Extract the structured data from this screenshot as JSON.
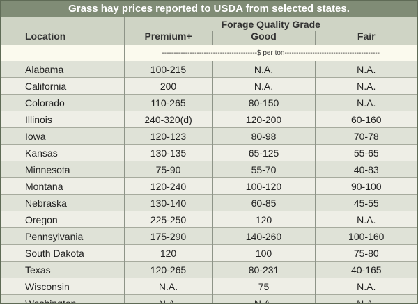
{
  "title": "Grass hay prices reported to USDA from selected states.",
  "header": {
    "location": "Location",
    "group": "Forage Quality Grade",
    "grades": [
      "Premium+",
      "Good",
      "Fair"
    ],
    "unit": "-----------------------------------------$ per ton-----------------------------------------"
  },
  "rows": [
    {
      "state": "Alabama",
      "premium": "100-215",
      "good": "N.A.",
      "fair": "N.A."
    },
    {
      "state": "California",
      "premium": "200",
      "good": "N.A.",
      "fair": "N.A."
    },
    {
      "state": "Colorado",
      "premium": "110-265",
      "good": "80-150",
      "fair": "N.A."
    },
    {
      "state": "Illinois",
      "premium": "240-320(d)",
      "good": "120-200",
      "fair": "60-160"
    },
    {
      "state": "Iowa",
      "premium": "120-123",
      "good": "80-98",
      "fair": "70-78"
    },
    {
      "state": "Kansas",
      "premium": "130-135",
      "good": "65-125",
      "fair": "55-65"
    },
    {
      "state": "Minnesota",
      "premium": "75-90",
      "good": "55-70",
      "fair": "40-83"
    },
    {
      "state": "Montana",
      "premium": "120-240",
      "good": "100-120",
      "fair": "90-100"
    },
    {
      "state": "Nebraska",
      "premium": "130-140",
      "good": "60-85",
      "fair": "45-55"
    },
    {
      "state": "Oregon",
      "premium": "225-250",
      "good": "120",
      "fair": "N.A."
    },
    {
      "state": "Pennsylvania",
      "premium": "175-290",
      "good": "140-260",
      "fair": "100-160"
    },
    {
      "state": "South Dakota",
      "premium": "120",
      "good": "100",
      "fair": "75-80"
    },
    {
      "state": "Texas",
      "premium": "120-265",
      "good": "80-231",
      "fair": "40-165"
    },
    {
      "state": "Wisconsin",
      "premium": "N.A.",
      "good": "75",
      "fair": "N.A."
    },
    {
      "state": "Washington",
      "premium": "N.A.",
      "good": "N.A.",
      "fair": "N.A."
    }
  ],
  "colors": {
    "title_bar": "#808c76",
    "header_bg": "#cfd4c5",
    "row_alt": "#dfe2d7",
    "row_plain": "#eeeee6"
  }
}
